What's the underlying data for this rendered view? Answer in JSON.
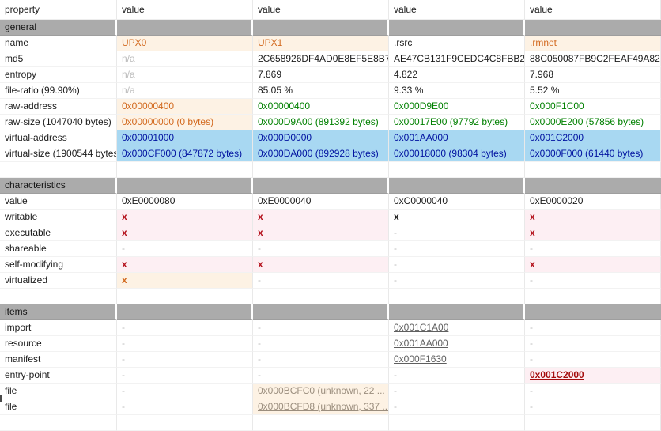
{
  "columns": [
    "property",
    "value",
    "value",
    "value",
    "value"
  ],
  "colors": {
    "accent_orange": "#d2691e",
    "peach_bg": "#fdf2e4",
    "green": "#008000",
    "blue_text": "#0012a0",
    "blue_bg": "#a8d8f2",
    "flag_red": "#b4111c",
    "pink_bg": "#fdeff3",
    "section_gray": "#ababab",
    "link_gray": "#5f5f5f",
    "file_link_gray": "#9b8e7e",
    "muted_gray": "#bcbcbc"
  },
  "sections": [
    {
      "title": "general",
      "rows": [
        {
          "property": "name",
          "cells": [
            {
              "text": "UPX0",
              "style": "orange"
            },
            {
              "text": "UPX1",
              "style": "orange"
            },
            {
              "text": ".rsrc",
              "style": "plain"
            },
            {
              "text": ".rmnet",
              "style": "orange"
            }
          ]
        },
        {
          "property": "md5",
          "cells": [
            {
              "text": "n/a",
              "style": "na"
            },
            {
              "text": "2C658926DF4AD0E8EF5E8B7...",
              "style": "plain"
            },
            {
              "text": "AE47CB131F9CEDC4C8FBB2...",
              "style": "plain"
            },
            {
              "text": "88C050087FB9C2FEAF49A82...",
              "style": "plain"
            }
          ]
        },
        {
          "property": "entropy",
          "cells": [
            {
              "text": "n/a",
              "style": "na"
            },
            {
              "text": "7.869",
              "style": "plain"
            },
            {
              "text": "4.822",
              "style": "plain"
            },
            {
              "text": "7.968",
              "style": "plain"
            }
          ]
        },
        {
          "property": "file-ratio (99.90%)",
          "cells": [
            {
              "text": "n/a",
              "style": "na"
            },
            {
              "text": "85.05 %",
              "style": "plain"
            },
            {
              "text": "9.33 %",
              "style": "plain"
            },
            {
              "text": "5.52 %",
              "style": "plain"
            }
          ]
        },
        {
          "property": "raw-address",
          "cells": [
            {
              "text": "0x00000400",
              "style": "orange"
            },
            {
              "text": "0x00000400",
              "style": "green"
            },
            {
              "text": "0x000D9E00",
              "style": "green"
            },
            {
              "text": "0x000F1C00",
              "style": "green"
            }
          ]
        },
        {
          "property": "raw-size (1047040 bytes)",
          "cells": [
            {
              "text": "0x00000000 (0 bytes)",
              "style": "orange"
            },
            {
              "text": "0x000D9A00 (891392 bytes)",
              "style": "green"
            },
            {
              "text": "0x00017E00 (97792 bytes)",
              "style": "green"
            },
            {
              "text": "0x0000E200 (57856 bytes)",
              "style": "green"
            }
          ]
        },
        {
          "property": "virtual-address",
          "cells": [
            {
              "text": "0x00001000",
              "style": "blue"
            },
            {
              "text": "0x000D0000",
              "style": "blue"
            },
            {
              "text": "0x001AA000",
              "style": "blue"
            },
            {
              "text": "0x001C2000",
              "style": "blue"
            }
          ]
        },
        {
          "property": "virtual-size (1900544 bytes)",
          "cells": [
            {
              "text": "0x000CF000 (847872 bytes)",
              "style": "blue"
            },
            {
              "text": "0x000DA000 (892928 bytes)",
              "style": "blue"
            },
            {
              "text": "0x00018000 (98304 bytes)",
              "style": "blue"
            },
            {
              "text": "0x0000F000 (61440 bytes)",
              "style": "blue"
            }
          ]
        }
      ]
    },
    {
      "title": "characteristics",
      "rows": [
        {
          "property": "value",
          "cells": [
            {
              "text": "0xE0000080",
              "style": "plain"
            },
            {
              "text": "0xE0000040",
              "style": "plain"
            },
            {
              "text": "0xC0000040",
              "style": "plain"
            },
            {
              "text": "0xE0000020",
              "style": "plain"
            }
          ]
        },
        {
          "property": "writable",
          "cells": [
            {
              "text": "x",
              "style": "x-red"
            },
            {
              "text": "x",
              "style": "x-red"
            },
            {
              "text": "x",
              "style": "x-black"
            },
            {
              "text": "x",
              "style": "x-red"
            }
          ]
        },
        {
          "property": "executable",
          "cells": [
            {
              "text": "x",
              "style": "x-red"
            },
            {
              "text": "x",
              "style": "x-red"
            },
            {
              "text": "-",
              "style": "dash"
            },
            {
              "text": "x",
              "style": "x-red"
            }
          ]
        },
        {
          "property": "shareable",
          "cells": [
            {
              "text": "-",
              "style": "dash"
            },
            {
              "text": "-",
              "style": "dash"
            },
            {
              "text": "-",
              "style": "dash"
            },
            {
              "text": "-",
              "style": "dash"
            }
          ]
        },
        {
          "property": "self-modifying",
          "cells": [
            {
              "text": "x",
              "style": "x-red"
            },
            {
              "text": "x",
              "style": "x-red"
            },
            {
              "text": "-",
              "style": "dash"
            },
            {
              "text": "x",
              "style": "x-red"
            }
          ]
        },
        {
          "property": "virtualized",
          "cells": [
            {
              "text": "x",
              "style": "x-orange"
            },
            {
              "text": "-",
              "style": "dash"
            },
            {
              "text": "-",
              "style": "dash"
            },
            {
              "text": "-",
              "style": "dash"
            }
          ]
        }
      ]
    },
    {
      "title": "items",
      "rows": [
        {
          "property": "import",
          "cells": [
            {
              "text": "-",
              "style": "dash"
            },
            {
              "text": "-",
              "style": "dash"
            },
            {
              "text": "0x001C1A00",
              "style": "link"
            },
            {
              "text": "-",
              "style": "dash"
            }
          ]
        },
        {
          "property": "resource",
          "cells": [
            {
              "text": "-",
              "style": "dash"
            },
            {
              "text": "-",
              "style": "dash"
            },
            {
              "text": "0x001AA000",
              "style": "link"
            },
            {
              "text": "-",
              "style": "dash"
            }
          ]
        },
        {
          "property": "manifest",
          "cells": [
            {
              "text": "-",
              "style": "dash"
            },
            {
              "text": "-",
              "style": "dash"
            },
            {
              "text": "0x000F1630",
              "style": "link"
            },
            {
              "text": "-",
              "style": "dash"
            }
          ]
        },
        {
          "property": "entry-point",
          "cells": [
            {
              "text": "-",
              "style": "dash"
            },
            {
              "text": "-",
              "style": "dash"
            },
            {
              "text": "-",
              "style": "dash"
            },
            {
              "text": "0x001C2000",
              "style": "ep"
            }
          ]
        },
        {
          "property": "file",
          "cells": [
            {
              "text": "-",
              "style": "dash"
            },
            {
              "text": "0x000BCFC0 (unknown, 22 ...",
              "style": "file-link"
            },
            {
              "text": "-",
              "style": "dash"
            },
            {
              "text": "-",
              "style": "dash"
            }
          ]
        },
        {
          "property": "file",
          "cells": [
            {
              "text": "-",
              "style": "dash"
            },
            {
              "text": "0x000BCFD8 (unknown, 337 ...",
              "style": "file-link"
            },
            {
              "text": "-",
              "style": "dash"
            },
            {
              "text": "-",
              "style": "dash"
            }
          ]
        }
      ]
    }
  ]
}
